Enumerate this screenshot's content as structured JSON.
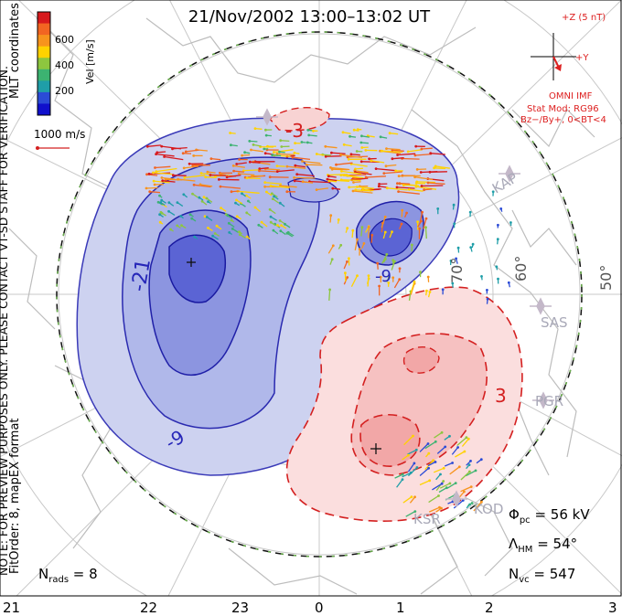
{
  "title": "21/Nov/2002 13:00–13:02 UT",
  "colorbar": {
    "label": "Vel [m/s]",
    "ticks": [
      "600",
      "400",
      "200"
    ],
    "colors": [
      "#d7191c",
      "#f26522",
      "#f7941d",
      "#ffd200",
      "#8dc63f",
      "#3cb371",
      "#1f9ea8",
      "#2b4bd6",
      "#1010cc"
    ]
  },
  "coords_label": "MLT coordinates",
  "vector_scale": "1000 m/s",
  "watermark": "NOTE: FOR PREVIEW PURPOSES ONLY. PLEASE CONTACT VT-SD STAFF FOR VERIFICATION.",
  "fit_info": "FitOrder: 8, mapEX format",
  "imf": {
    "z_label": "+Z (5 nT)",
    "y_label": "+Y",
    "source": "OMNI IMF",
    "model_line1": "Stat Mod: RG96",
    "model_line2": "Bz−/By+, 0<BT<4"
  },
  "latitude_labels": [
    "60°",
    "50°",
    "70°"
  ],
  "stations": [
    "SAS",
    "PGR",
    "KOD",
    "KSR",
    "KAP"
  ],
  "contour_labels": [
    "-21",
    "-9",
    "-3",
    "3",
    "-9"
  ],
  "stats": {
    "phi_pc": "Φ",
    "phi_pc_sub": "pc",
    "phi_pc_val": " = 56 kV",
    "lambda_hm": "Λ",
    "lambda_hm_sub": "HM",
    "lambda_hm_val": " = 54°",
    "n_vc": "N",
    "n_vc_sub": "vc",
    "n_vc_val": " = 547",
    "n_rads": "N",
    "n_rads_sub": "rads",
    "n_rads_val": " = 8"
  },
  "mlt_ticks": [
    "21",
    "22",
    "23",
    "0",
    "1",
    "2",
    "3"
  ],
  "colors": {
    "negative_cell": "#2626b8",
    "positive_cell": "#d42020",
    "imf_text": "#dd2020",
    "boundary": "#6ab04c"
  }
}
